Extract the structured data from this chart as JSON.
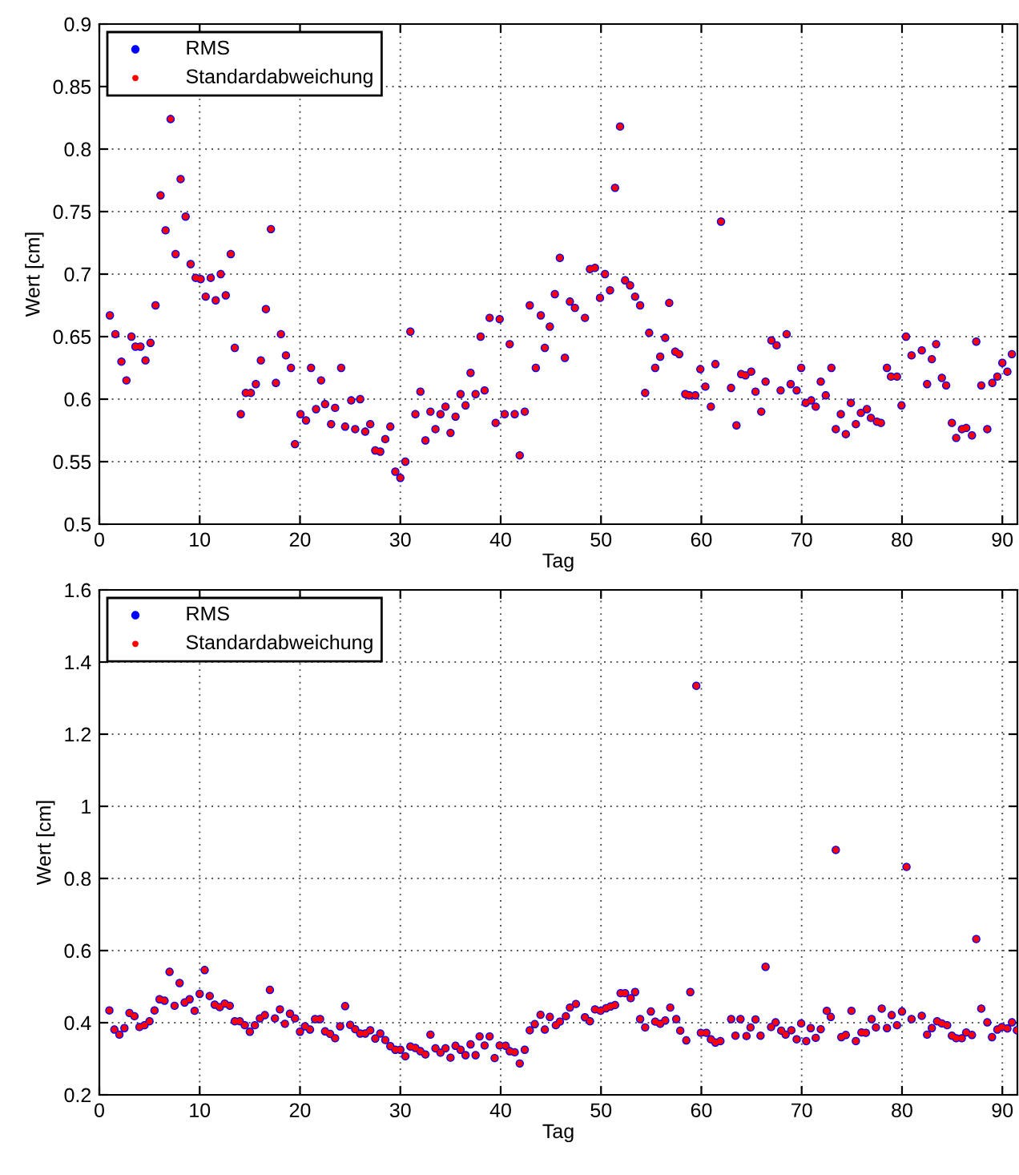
{
  "chart_data": [
    {
      "type": "scatter",
      "xlabel": "Tag",
      "ylabel": "Wert [cm]",
      "xlim": [
        0,
        91.5
      ],
      "xticks": [
        0,
        10,
        20,
        30,
        40,
        50,
        60,
        70,
        80,
        90
      ],
      "ylim": [
        0.5,
        0.9
      ],
      "yticks": [
        0.5,
        0.55,
        0.6,
        0.65,
        0.7,
        0.75,
        0.8,
        0.85,
        0.9
      ],
      "grid": true,
      "legend": "top left",
      "marker": "circle",
      "x": [
        1.05,
        1.6,
        2.2,
        2.7,
        3.2,
        3.6,
        4.1,
        4.6,
        5.1,
        5.6,
        6.1,
        6.6,
        7.1,
        7.6,
        8.1,
        8.6,
        9.1,
        9.6,
        10.1,
        10.6,
        11.1,
        11.6,
        12.1,
        12.6,
        13.1,
        13.5,
        14.1,
        14.6,
        15.1,
        15.6,
        16.1,
        16.6,
        17.1,
        17.6,
        18.1,
        18.6,
        19.1,
        19.5,
        20.05,
        20.6,
        21.1,
        21.6,
        22.1,
        22.5,
        23.1,
        23.5,
        24.1,
        24.5,
        25.1,
        25.5,
        26.0,
        26.5,
        27.0,
        27.5,
        28.0,
        28.5,
        29.0,
        29.5,
        30.0,
        30.5,
        31.0,
        31.5,
        32.0,
        32.5,
        33.0,
        33.5,
        34.0,
        34.5,
        35.0,
        35.5,
        36.0,
        36.5,
        37.0,
        37.5,
        38.0,
        38.4,
        38.9,
        39.5,
        39.9,
        40.4,
        40.9,
        41.4,
        41.9,
        42.4,
        42.9,
        43.5,
        44.0,
        44.4,
        44.9,
        45.4,
        45.9,
        46.4,
        46.9,
        47.4,
        48.4,
        48.9,
        49.4,
        49.9,
        50.4,
        50.9,
        51.4,
        51.9,
        52.4,
        52.9,
        53.4,
        53.9,
        54.4,
        54.8,
        55.4,
        55.9,
        56.4,
        56.8,
        57.4,
        57.8,
        58.4,
        58.8,
        59.4,
        59.9,
        60.4,
        60.95,
        61.4,
        61.96,
        62.96,
        63.5,
        63.97,
        64.4,
        64.97,
        65.4,
        65.97,
        66.4,
        66.98,
        67.5,
        67.9,
        68.5,
        68.9,
        69.5,
        69.95,
        70.4,
        70.95,
        71.4,
        71.9,
        72.4,
        72.96,
        73.4,
        73.9,
        74.4,
        74.9,
        75.4,
        75.9,
        76.5,
        76.9,
        77.5,
        77.9,
        78.5,
        78.9,
        79.5,
        79.95,
        80.4,
        80.95,
        81.97,
        82.5,
        82.97,
        83.4,
        83.97,
        84.4,
        84.97,
        85.4,
        85.97,
        86.4,
        86.97,
        87.4,
        87.9,
        88.5,
        89.0,
        89.5,
        90.0,
        90.5,
        90.95
      ],
      "series": [
        {
          "name": "RMS",
          "color": "#0000ff",
          "values": [
            0.667,
            0.652,
            0.63,
            0.615,
            0.65,
            0.642,
            0.642,
            0.631,
            0.645,
            0.675,
            0.763,
            0.735,
            0.824,
            0.716,
            0.776,
            0.746,
            0.708,
            0.697,
            0.696,
            0.682,
            0.697,
            0.679,
            0.7,
            0.683,
            0.716,
            0.641,
            0.588,
            0.605,
            0.605,
            0.612,
            0.631,
            0.672,
            0.736,
            0.613,
            0.652,
            0.635,
            0.625,
            0.564,
            0.588,
            0.583,
            0.625,
            0.592,
            0.615,
            0.596,
            0.58,
            0.593,
            0.625,
            0.578,
            0.599,
            0.576,
            0.6,
            0.574,
            0.58,
            0.559,
            0.558,
            0.568,
            0.578,
            0.542,
            0.537,
            0.55,
            0.654,
            0.588,
            0.606,
            0.567,
            0.59,
            0.576,
            0.588,
            0.594,
            0.573,
            0.586,
            0.604,
            0.595,
            0.621,
            0.604,
            0.65,
            0.607,
            0.665,
            0.581,
            0.664,
            0.588,
            0.644,
            0.588,
            0.555,
            0.59,
            0.675,
            0.625,
            0.667,
            0.641,
            0.658,
            0.684,
            0.713,
            0.633,
            0.678,
            0.673,
            0.665,
            0.704,
            0.705,
            0.681,
            0.7,
            0.687,
            0.769,
            0.818,
            0.695,
            0.691,
            0.682,
            0.675,
            0.605,
            0.653,
            0.625,
            0.634,
            0.649,
            0.677,
            0.638,
            0.636,
            0.604,
            0.603,
            0.603,
            0.624,
            0.61,
            0.594,
            0.628,
            0.742,
            0.609,
            0.579,
            0.62,
            0.619,
            0.622,
            0.606,
            0.59,
            0.614,
            0.647,
            0.643,
            0.607,
            0.652,
            0.612,
            0.607,
            0.625,
            0.597,
            0.599,
            0.594,
            0.614,
            0.603,
            0.625,
            0.576,
            0.588,
            0.572,
            0.597,
            0.58,
            0.589,
            0.592,
            0.585,
            0.582,
            0.581,
            0.625,
            0.618,
            0.618,
            0.595,
            0.65,
            0.635,
            0.639,
            0.612,
            0.632,
            0.644,
            0.617,
            0.611,
            0.581,
            0.569,
            0.576,
            0.577,
            0.571,
            0.646,
            0.611,
            0.576,
            0.613,
            0.618,
            0.629,
            0.622,
            0.636
          ]
        },
        {
          "name": "Standardabweichung",
          "color": "#ff0000",
          "values": [
            0.667,
            0.652,
            0.63,
            0.615,
            0.65,
            0.642,
            0.642,
            0.631,
            0.645,
            0.675,
            0.763,
            0.735,
            0.824,
            0.716,
            0.776,
            0.746,
            0.708,
            0.697,
            0.696,
            0.682,
            0.697,
            0.679,
            0.7,
            0.683,
            0.716,
            0.641,
            0.588,
            0.605,
            0.605,
            0.612,
            0.631,
            0.672,
            0.736,
            0.613,
            0.652,
            0.635,
            0.625,
            0.564,
            0.588,
            0.583,
            0.625,
            0.592,
            0.615,
            0.596,
            0.58,
            0.593,
            0.625,
            0.578,
            0.599,
            0.576,
            0.6,
            0.574,
            0.58,
            0.559,
            0.558,
            0.568,
            0.578,
            0.542,
            0.537,
            0.55,
            0.654,
            0.588,
            0.606,
            0.567,
            0.59,
            0.576,
            0.588,
            0.594,
            0.573,
            0.586,
            0.604,
            0.595,
            0.621,
            0.604,
            0.65,
            0.607,
            0.665,
            0.581,
            0.664,
            0.588,
            0.644,
            0.588,
            0.555,
            0.59,
            0.675,
            0.625,
            0.667,
            0.641,
            0.658,
            0.684,
            0.713,
            0.633,
            0.678,
            0.673,
            0.665,
            0.704,
            0.705,
            0.681,
            0.7,
            0.687,
            0.769,
            0.818,
            0.695,
            0.691,
            0.682,
            0.675,
            0.605,
            0.653,
            0.625,
            0.634,
            0.649,
            0.677,
            0.638,
            0.636,
            0.604,
            0.603,
            0.603,
            0.624,
            0.61,
            0.594,
            0.628,
            0.742,
            0.609,
            0.579,
            0.62,
            0.619,
            0.622,
            0.606,
            0.59,
            0.614,
            0.647,
            0.643,
            0.607,
            0.652,
            0.612,
            0.607,
            0.625,
            0.597,
            0.599,
            0.594,
            0.614,
            0.603,
            0.625,
            0.576,
            0.588,
            0.572,
            0.597,
            0.58,
            0.589,
            0.592,
            0.585,
            0.582,
            0.581,
            0.625,
            0.618,
            0.618,
            0.595,
            0.65,
            0.635,
            0.639,
            0.612,
            0.632,
            0.644,
            0.617,
            0.611,
            0.581,
            0.569,
            0.576,
            0.577,
            0.571,
            0.646,
            0.611,
            0.576,
            0.613,
            0.618,
            0.629,
            0.622,
            0.636
          ]
        }
      ]
    },
    {
      "type": "scatter",
      "xlabel": "Tag",
      "ylabel": "Wert [cm]",
      "xlim": [
        0,
        91.5
      ],
      "xticks": [
        0,
        10,
        20,
        30,
        40,
        50,
        60,
        70,
        80,
        90
      ],
      "ylim": [
        0.2,
        1.6
      ],
      "yticks": [
        0.2,
        0.4,
        0.6,
        0.8,
        1,
        1.2,
        1.4,
        1.6
      ],
      "grid": true,
      "legend": "top left",
      "marker": "circle",
      "x": [
        1.0,
        1.5,
        2.0,
        2.5,
        3.0,
        3.5,
        4.0,
        4.5,
        5.0,
        5.5,
        6.0,
        6.5,
        7.0,
        7.5,
        8.0,
        8.5,
        9.0,
        9.5,
        10.0,
        10.5,
        11.0,
        11.5,
        12.0,
        12.5,
        13.0,
        13.5,
        14.0,
        14.5,
        15.0,
        15.5,
        16.0,
        16.5,
        17.0,
        17.5,
        18.0,
        18.5,
        19.0,
        19.5,
        20.0,
        20.5,
        21.0,
        21.5,
        22.0,
        22.5,
        23.0,
        23.5,
        24.0,
        24.5,
        25.0,
        25.5,
        26.0,
        26.5,
        27.0,
        27.5,
        28.0,
        28.5,
        29.0,
        29.5,
        30.0,
        30.5,
        31.0,
        31.5,
        32.0,
        32.5,
        33.0,
        33.5,
        34.0,
        34.5,
        35.0,
        35.5,
        36.0,
        36.5,
        37.0,
        37.5,
        37.9,
        38.4,
        38.9,
        39.4,
        39.9,
        40.5,
        40.9,
        41.4,
        41.9,
        42.4,
        42.9,
        43.4,
        43.97,
        44.4,
        44.9,
        45.5,
        45.9,
        46.5,
        46.9,
        47.5,
        48.4,
        48.9,
        49.4,
        49.95,
        50.5,
        50.95,
        51.4,
        51.95,
        52.4,
        52.96,
        53.4,
        53.9,
        54.4,
        54.97,
        55.4,
        55.9,
        56.4,
        56.9,
        57.5,
        57.9,
        58.5,
        58.9,
        59.5,
        59.95,
        60.5,
        60.95,
        61.4,
        61.9,
        62.97,
        63.4,
        63.9,
        64.5,
        64.9,
        65.4,
        65.9,
        66.4,
        66.95,
        67.4,
        67.96,
        68.4,
        68.97,
        69.5,
        69.95,
        70.45,
        70.9,
        71.4,
        71.9,
        72.5,
        72.9,
        73.4,
        73.95,
        74.4,
        74.96,
        75.4,
        75.96,
        76.4,
        76.97,
        77.4,
        77.98,
        78.5,
        78.97,
        79.5,
        80.0,
        80.45,
        80.95,
        81.97,
        82.5,
        82.97,
        83.5,
        83.97,
        84.5,
        84.97,
        85.4,
        85.96,
        86.4,
        86.97,
        87.4,
        87.9,
        88.5,
        88.97,
        89.5,
        89.95,
        90.5,
        90.96,
        91.45
      ],
      "series": [
        {
          "name": "RMS",
          "color": "#0000ff",
          "values": [
            0.434,
            0.381,
            0.367,
            0.385,
            0.427,
            0.418,
            0.388,
            0.393,
            0.404,
            0.434,
            0.465,
            0.461,
            0.541,
            0.447,
            0.51,
            0.456,
            0.465,
            0.433,
            0.48,
            0.546,
            0.474,
            0.45,
            0.443,
            0.453,
            0.447,
            0.404,
            0.404,
            0.393,
            0.375,
            0.393,
            0.412,
            0.421,
            0.491,
            0.412,
            0.437,
            0.397,
            0.425,
            0.412,
            0.375,
            0.39,
            0.381,
            0.41,
            0.41,
            0.376,
            0.369,
            0.357,
            0.39,
            0.446,
            0.394,
            0.382,
            0.37,
            0.37,
            0.379,
            0.356,
            0.37,
            0.352,
            0.335,
            0.325,
            0.325,
            0.307,
            0.334,
            0.33,
            0.321,
            0.312,
            0.367,
            0.329,
            0.317,
            0.329,
            0.303,
            0.336,
            0.325,
            0.31,
            0.34,
            0.31,
            0.362,
            0.337,
            0.362,
            0.302,
            0.337,
            0.336,
            0.321,
            0.318,
            0.287,
            0.325,
            0.379,
            0.396,
            0.422,
            0.381,
            0.416,
            0.393,
            0.403,
            0.418,
            0.442,
            0.452,
            0.415,
            0.404,
            0.437,
            0.433,
            0.44,
            0.445,
            0.449,
            0.482,
            0.482,
            0.468,
            0.485,
            0.41,
            0.387,
            0.431,
            0.403,
            0.397,
            0.406,
            0.442,
            0.41,
            0.378,
            0.351,
            0.485,
            1.334,
            0.372,
            0.372,
            0.354,
            0.345,
            0.349,
            0.41,
            0.364,
            0.41,
            0.363,
            0.387,
            0.409,
            0.364,
            0.555,
            0.388,
            0.401,
            0.378,
            0.367,
            0.379,
            0.354,
            0.398,
            0.349,
            0.385,
            0.358,
            0.382,
            0.433,
            0.416,
            0.879,
            0.36,
            0.366,
            0.433,
            0.349,
            0.373,
            0.372,
            0.41,
            0.387,
            0.439,
            0.385,
            0.421,
            0.393,
            0.431,
            0.832,
            0.41,
            0.419,
            0.367,
            0.385,
            0.404,
            0.398,
            0.393,
            0.364,
            0.357,
            0.357,
            0.373,
            0.366,
            0.632,
            0.439,
            0.401,
            0.36,
            0.381,
            0.388,
            0.384,
            0.401,
            0.379
          ]
        },
        {
          "name": "Standardabweichung",
          "color": "#ff0000",
          "values": [
            0.434,
            0.381,
            0.367,
            0.385,
            0.427,
            0.418,
            0.388,
            0.393,
            0.404,
            0.434,
            0.465,
            0.461,
            0.541,
            0.447,
            0.51,
            0.456,
            0.465,
            0.433,
            0.48,
            0.546,
            0.474,
            0.45,
            0.443,
            0.453,
            0.447,
            0.404,
            0.404,
            0.393,
            0.375,
            0.393,
            0.412,
            0.421,
            0.491,
            0.412,
            0.437,
            0.397,
            0.425,
            0.412,
            0.375,
            0.39,
            0.381,
            0.41,
            0.41,
            0.376,
            0.369,
            0.357,
            0.39,
            0.446,
            0.394,
            0.382,
            0.37,
            0.37,
            0.379,
            0.356,
            0.37,
            0.352,
            0.335,
            0.325,
            0.325,
            0.307,
            0.334,
            0.33,
            0.321,
            0.312,
            0.367,
            0.329,
            0.317,
            0.329,
            0.303,
            0.336,
            0.325,
            0.31,
            0.34,
            0.31,
            0.362,
            0.337,
            0.362,
            0.302,
            0.337,
            0.336,
            0.321,
            0.318,
            0.287,
            0.325,
            0.379,
            0.396,
            0.422,
            0.381,
            0.416,
            0.393,
            0.403,
            0.418,
            0.442,
            0.452,
            0.415,
            0.404,
            0.437,
            0.433,
            0.44,
            0.445,
            0.449,
            0.482,
            0.482,
            0.468,
            0.485,
            0.41,
            0.387,
            0.431,
            0.403,
            0.397,
            0.406,
            0.442,
            0.41,
            0.378,
            0.351,
            0.485,
            1.334,
            0.372,
            0.372,
            0.354,
            0.345,
            0.349,
            0.41,
            0.364,
            0.41,
            0.363,
            0.387,
            0.409,
            0.364,
            0.555,
            0.388,
            0.401,
            0.378,
            0.367,
            0.379,
            0.354,
            0.398,
            0.349,
            0.385,
            0.358,
            0.382,
            0.433,
            0.416,
            0.879,
            0.36,
            0.366,
            0.433,
            0.349,
            0.373,
            0.372,
            0.41,
            0.387,
            0.439,
            0.385,
            0.421,
            0.393,
            0.431,
            0.832,
            0.41,
            0.419,
            0.367,
            0.385,
            0.404,
            0.398,
            0.393,
            0.364,
            0.357,
            0.357,
            0.373,
            0.366,
            0.632,
            0.439,
            0.401,
            0.36,
            0.381,
            0.388,
            0.384,
            0.401,
            0.379
          ]
        }
      ]
    }
  ]
}
